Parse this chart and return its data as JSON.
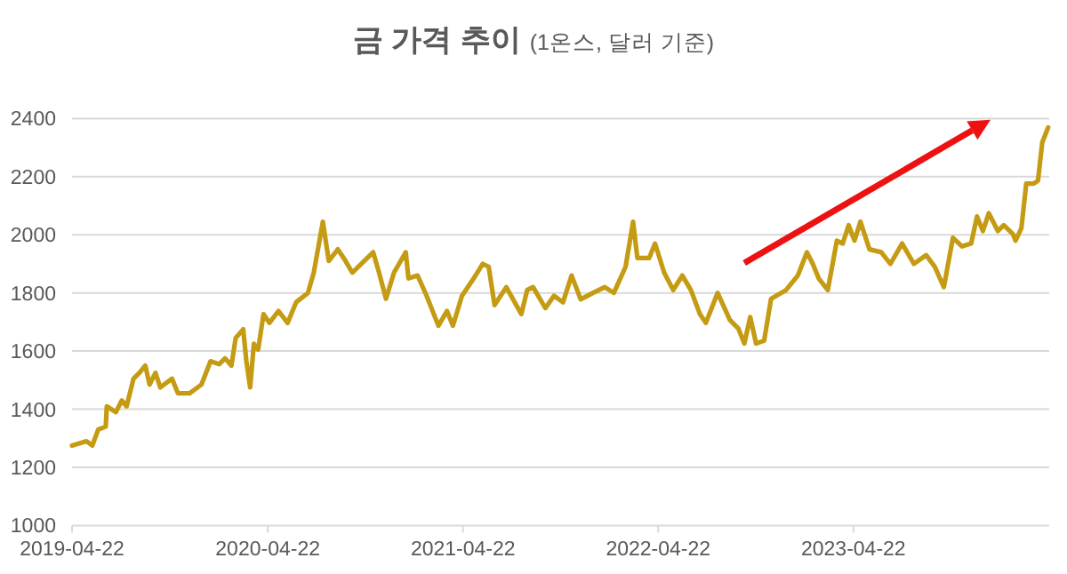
{
  "chart_data": {
    "type": "line",
    "title": "금 가격 추이",
    "subtitle": "(1온스, 달러 기준)",
    "x": [
      "2019-04-22",
      "2019-05-19",
      "2019-05-30",
      "2019-06-10",
      "2019-06-24",
      "2019-06-26",
      "2019-07-13",
      "2019-07-24",
      "2019-08-02",
      "2019-08-15",
      "2019-08-26",
      "2019-09-06",
      "2019-09-14",
      "2019-09-25",
      "2019-10-04",
      "2019-10-26",
      "2019-11-06",
      "2019-11-28",
      "2019-12-20",
      "2020-01-06",
      "2020-01-22",
      "2020-02-02",
      "2020-02-14",
      "2020-02-22",
      "2020-03-07",
      "2020-03-13",
      "2020-03-20",
      "2020-03-27",
      "2020-04-04",
      "2020-04-14",
      "2020-04-25",
      "2020-05-12",
      "2020-05-29",
      "2020-06-14",
      "2020-07-06",
      "2020-07-17",
      "2020-08-03",
      "2020-08-14",
      "2020-08-31",
      "2020-09-11",
      "2020-09-27",
      "2020-10-14",
      "2020-11-05",
      "2020-11-16",
      "2020-11-29",
      "2020-12-14",
      "2021-01-05",
      "2021-01-10",
      "2021-01-27",
      "2021-02-13",
      "2021-03-07",
      "2021-03-23",
      "2021-04-03",
      "2021-04-20",
      "2021-05-12",
      "2021-05-29",
      "2021-06-09",
      "2021-06-20",
      "2021-07-12",
      "2021-08-09",
      "2021-08-20",
      "2021-08-31",
      "2021-09-23",
      "2021-10-09",
      "2021-10-26",
      "2021-11-11",
      "2021-11-28",
      "2021-12-21",
      "2022-01-12",
      "2022-01-29",
      "2022-02-20",
      "2022-03-06",
      "2022-03-14",
      "2022-04-05",
      "2022-04-16",
      "2022-05-03",
      "2022-05-20",
      "2022-06-06",
      "2022-06-22",
      "2022-07-09",
      "2022-07-20",
      "2022-08-11",
      "2022-09-03",
      "2022-09-19",
      "2022-09-30",
      "2022-10-11",
      "2022-10-22",
      "2022-11-06",
      "2022-11-19",
      "2022-12-17",
      "2023-01-08",
      "2023-01-25",
      "2023-02-05",
      "2023-02-16",
      "2023-03-05",
      "2023-03-22",
      "2023-04-02",
      "2023-04-13",
      "2023-04-24",
      "2023-05-05",
      "2023-05-22",
      "2023-06-13",
      "2023-06-30",
      "2023-07-22",
      "2023-08-13",
      "2023-09-05",
      "2023-09-21",
      "2023-10-08",
      "2023-10-25",
      "2023-11-11",
      "2023-11-28",
      "2023-12-09",
      "2023-12-20",
      "2023-12-31",
      "2024-01-17",
      "2024-01-28",
      "2024-02-14",
      "2024-02-19",
      "2024-03-01",
      "2024-03-10",
      "2024-03-24",
      "2024-04-01",
      "2024-04-09",
      "2024-04-20"
    ],
    "series": [
      {
        "color": "#c49b12",
        "values": [
          1275,
          1290,
          1275,
          1330,
          1340,
          1410,
          1390,
          1430,
          1410,
          1505,
          1525,
          1550,
          1485,
          1525,
          1475,
          1505,
          1455,
          1455,
          1485,
          1565,
          1555,
          1575,
          1550,
          1645,
          1675,
          1565,
          1475,
          1625,
          1605,
          1727,
          1697,
          1738,
          1697,
          1768,
          1800,
          1870,
          2045,
          1910,
          1950,
          1920,
          1870,
          1900,
          1940,
          1870,
          1780,
          1870,
          1940,
          1850,
          1860,
          1790,
          1687,
          1738,
          1687,
          1790,
          1850,
          1900,
          1890,
          1758,
          1820,
          1727,
          1810,
          1820,
          1748,
          1790,
          1768,
          1860,
          1778,
          1800,
          1820,
          1800,
          1890,
          2045,
          1920,
          1920,
          1970,
          1870,
          1810,
          1860,
          1810,
          1727,
          1697,
          1800,
          1707,
          1677,
          1626,
          1717,
          1626,
          1636,
          1780,
          1810,
          1860,
          1940,
          1900,
          1850,
          1810,
          1980,
          1970,
          2033,
          1980,
          2045,
          1950,
          1940,
          1900,
          1970,
          1900,
          1930,
          1890,
          1820,
          1990,
          1960,
          1970,
          2063,
          2013,
          2074,
          2013,
          2033,
          2003,
          1980,
          2023,
          2176,
          2176,
          2186,
          2318,
          2369
        ]
      }
    ],
    "xlim": [
      "2019-04-22",
      "2024-04-22"
    ],
    "xticks": [
      "2019-04-22",
      "2020-04-22",
      "2021-04-22",
      "2022-04-22",
      "2023-04-22"
    ],
    "ylim": [
      1000,
      2400
    ],
    "yticks": [
      1000,
      1200,
      1400,
      1600,
      1800,
      2000,
      2200,
      2400
    ],
    "grid": "y",
    "marker": "none",
    "line_style": "solid"
  }
}
